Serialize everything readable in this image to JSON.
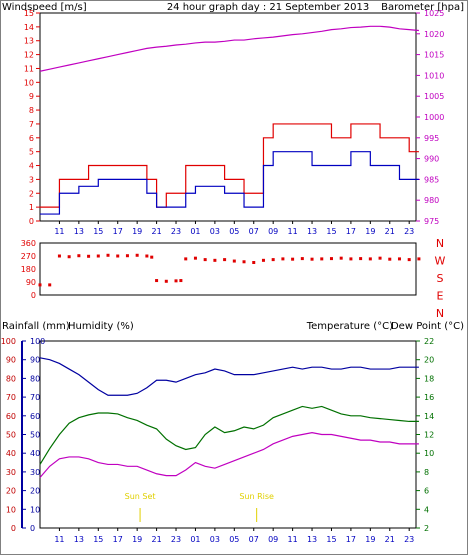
{
  "colors": {
    "wind": "#e00000",
    "gust": "#e00000",
    "avg": "#0000c0",
    "baro": "#c000c0",
    "dir": "#e00000",
    "humidity": "#0000a0",
    "temperature": "#007000",
    "dewpoint": "#c000c0",
    "rainfall": "#c00000",
    "sun": "#e0d000",
    "text_blue": "#0000c0",
    "text_green": "#007000"
  },
  "chart_data": [
    {
      "type": "line",
      "title": "24 hour graph day : 21 September 2013",
      "left_axis_label": "Windspeed [m/s]",
      "right_axis_label": "Barometer [hpa]",
      "left_ticks": [
        "0",
        "1",
        "2",
        "3",
        "4",
        "5",
        "6",
        "7",
        "8",
        "9",
        "10",
        "11",
        "12",
        "13",
        "14",
        "15"
      ],
      "right_ticks": [
        "975",
        "980",
        "985",
        "990",
        "995",
        "1000",
        "1005",
        "1010",
        "1015",
        "1020",
        "1025"
      ],
      "x_ticks": [
        "11",
        "13",
        "15",
        "17",
        "19",
        "21",
        "23",
        "01",
        "03",
        "05",
        "07",
        "09",
        "11",
        "13",
        "15",
        "17",
        "19",
        "21",
        "23"
      ],
      "ylim_left": [
        0,
        15
      ],
      "ylim_right": [
        975,
        1025
      ],
      "series": [
        {
          "name": "Windspeed gust",
          "x": [
            9,
            10,
            11,
            12,
            13,
            14,
            15,
            16,
            17,
            18,
            19,
            20,
            21,
            22,
            23,
            0,
            1,
            2,
            3,
            4,
            5,
            6,
            7,
            8,
            9,
            10,
            11,
            12,
            13,
            14,
            15,
            16,
            17,
            18,
            19,
            20,
            21,
            22,
            23,
            24
          ],
          "values": [
            1,
            1,
            3,
            3,
            3,
            4,
            4,
            4,
            4,
            4,
            4,
            3,
            1,
            2,
            2,
            4,
            4,
            4,
            4,
            3,
            3,
            2,
            2,
            6,
            7,
            7,
            7,
            7,
            7,
            7,
            6,
            6,
            7,
            7,
            7,
            6,
            6,
            6,
            5,
            5
          ]
        },
        {
          "name": "Windspeed average",
          "x": [
            9,
            10,
            11,
            12,
            13,
            14,
            15,
            16,
            17,
            18,
            19,
            20,
            21,
            22,
            23,
            0,
            1,
            2,
            3,
            4,
            5,
            6,
            7,
            8,
            9,
            10,
            11,
            12,
            13,
            14,
            15,
            16,
            17,
            18,
            19,
            20,
            21,
            22,
            23,
            24
          ],
          "values": [
            0.5,
            0.5,
            2,
            2,
            2.5,
            2.5,
            3,
            3,
            3,
            3,
            3,
            2,
            1,
            1,
            1,
            2,
            2.5,
            2.5,
            2.5,
            2,
            2,
            1,
            1,
            4,
            5,
            5,
            5,
            5,
            4,
            4,
            4,
            4,
            5,
            5,
            4,
            4,
            4,
            3,
            3,
            3
          ]
        },
        {
          "name": "Barometer",
          "x": [
            9,
            10,
            11,
            12,
            13,
            14,
            15,
            16,
            17,
            18,
            19,
            20,
            21,
            22,
            23,
            0,
            1,
            2,
            3,
            4,
            5,
            6,
            7,
            8,
            9,
            10,
            11,
            12,
            13,
            14,
            15,
            16,
            17,
            18,
            19,
            20,
            21,
            22,
            23,
            24
          ],
          "values": [
            1011,
            1011.5,
            1012,
            1012.5,
            1013,
            1013.5,
            1014,
            1014.5,
            1015,
            1015.5,
            1016,
            1016.5,
            1016.8,
            1017,
            1017.3,
            1017.5,
            1017.8,
            1018,
            1018,
            1018.2,
            1018.5,
            1018.5,
            1018.8,
            1019,
            1019.2,
            1019.5,
            1019.8,
            1020,
            1020.3,
            1020.6,
            1021,
            1021.2,
            1021.5,
            1021.6,
            1021.8,
            1021.8,
            1021.6,
            1021.2,
            1021,
            1020.8
          ]
        }
      ]
    },
    {
      "type": "scatter",
      "left_ticks": [
        "0",
        "90",
        "180",
        "270",
        "360"
      ],
      "right_ticks": [
        "N",
        "W",
        "S",
        "E",
        "N"
      ],
      "ylim": [
        0,
        360
      ],
      "series": [
        {
          "name": "Wind direction",
          "x": [
            9,
            10,
            11,
            12,
            13,
            14,
            15,
            16,
            17,
            18,
            19,
            20,
            20.5,
            21,
            22,
            23,
            23.5,
            0,
            1,
            2,
            3,
            4,
            5,
            6,
            7,
            8,
            9,
            10,
            11,
            12,
            13,
            14,
            15,
            16,
            17,
            18,
            19,
            20,
            21,
            22,
            23,
            24
          ],
          "values": [
            70,
            70,
            270,
            265,
            272,
            268,
            270,
            275,
            270,
            272,
            275,
            270,
            262,
            100,
            95,
            98,
            100,
            250,
            255,
            245,
            240,
            245,
            235,
            230,
            225,
            240,
            245,
            250,
            248,
            252,
            248,
            250,
            252,
            255,
            250,
            252,
            250,
            255,
            248,
            250,
            245,
            250
          ]
        }
      ]
    },
    {
      "type": "line",
      "left_axis_label": "Rainfall (mm)",
      "humidity_axis_label": "Humidity (%)",
      "right_axis_label_temp": "Temperature (°C)",
      "right_axis_label_dew": "Dew Point (°C)",
      "left_ticks": [
        "0",
        "10",
        "20",
        "30",
        "40",
        "50",
        "60",
        "70",
        "80",
        "90",
        "100"
      ],
      "right_ticks": [
        "2",
        "4",
        "6",
        "8",
        "10",
        "12",
        "14",
        "16",
        "18",
        "20",
        "22"
      ],
      "ylim_left": [
        0,
        100
      ],
      "ylim_right": [
        2,
        22
      ],
      "annotations": [
        {
          "label": "Sun Set",
          "x": 19.3
        },
        {
          "label": "Sun Rise",
          "x": 7.3
        }
      ],
      "series": [
        {
          "name": "Humidity",
          "x": [
            9,
            10,
            11,
            12,
            13,
            14,
            15,
            16,
            17,
            18,
            19,
            20,
            21,
            22,
            23,
            0,
            1,
            2,
            3,
            4,
            5,
            6,
            7,
            8,
            9,
            10,
            11,
            12,
            13,
            14,
            15,
            16,
            17,
            18,
            19,
            20,
            21,
            22,
            23,
            24
          ],
          "values": [
            91,
            90,
            88,
            85,
            82,
            78,
            74,
            71,
            71,
            71,
            72,
            75,
            79,
            79,
            78,
            80,
            82,
            83,
            85,
            84,
            82,
            82,
            82,
            83,
            84,
            85,
            86,
            85,
            86,
            86,
            85,
            85,
            86,
            86,
            85,
            85,
            85,
            86,
            86,
            86
          ]
        },
        {
          "name": "Temperature",
          "x": [
            9,
            10,
            11,
            12,
            13,
            14,
            15,
            16,
            17,
            18,
            19,
            20,
            21,
            22,
            23,
            0,
            1,
            2,
            3,
            4,
            5,
            6,
            7,
            8,
            9,
            10,
            11,
            12,
            13,
            14,
            15,
            16,
            17,
            18,
            19,
            20,
            21,
            22,
            23,
            24
          ],
          "values": [
            8.8,
            10.5,
            12.0,
            13.2,
            13.8,
            14.1,
            14.3,
            14.3,
            14.2,
            13.8,
            13.5,
            13.0,
            12.6,
            11.5,
            10.8,
            10.4,
            10.6,
            12.0,
            12.8,
            12.2,
            12.4,
            12.8,
            12.6,
            13.0,
            13.8,
            14.2,
            14.6,
            15.0,
            14.8,
            15.0,
            14.6,
            14.2,
            14.0,
            14.0,
            13.8,
            13.7,
            13.6,
            13.5,
            13.4,
            13.4
          ]
        },
        {
          "name": "Dew Point",
          "x": [
            9,
            10,
            11,
            12,
            13,
            14,
            15,
            16,
            17,
            18,
            19,
            20,
            21,
            22,
            23,
            0,
            1,
            2,
            3,
            4,
            5,
            6,
            7,
            8,
            9,
            10,
            11,
            12,
            13,
            14,
            15,
            16,
            17,
            18,
            19,
            20,
            21,
            22,
            23,
            24
          ],
          "values": [
            7.4,
            8.6,
            9.4,
            9.6,
            9.6,
            9.4,
            9.0,
            8.8,
            8.8,
            8.6,
            8.6,
            8.2,
            7.8,
            7.6,
            7.6,
            8.2,
            9.0,
            8.6,
            8.4,
            8.8,
            9.2,
            9.6,
            10.0,
            10.4,
            11.0,
            11.4,
            11.8,
            12.0,
            12.2,
            12.0,
            12.0,
            11.8,
            11.6,
            11.4,
            11.4,
            11.2,
            11.2,
            11.0,
            11.0,
            11.0
          ]
        }
      ]
    }
  ]
}
